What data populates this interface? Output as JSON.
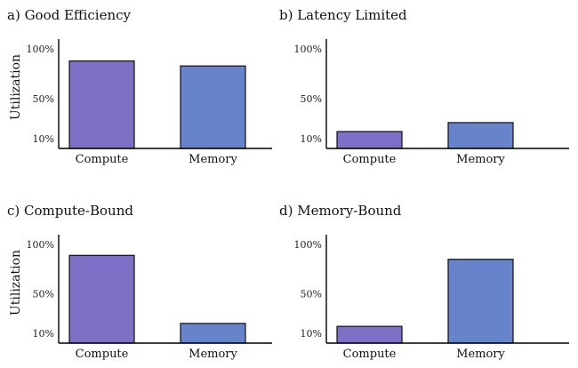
{
  "chart_data": [
    {
      "type": "bar",
      "title": "a) Good Efficiency",
      "ylabel": "Utilization",
      "xlabel": "",
      "categories": [
        "Compute",
        "Memory"
      ],
      "values": [
        88,
        83
      ],
      "colors": [
        "#7b6fc6",
        "#6683cb"
      ],
      "yticks": [
        10,
        50,
        100
      ],
      "ytick_labels": [
        "10%",
        "50%",
        "100%"
      ],
      "ylim": [
        0,
        110
      ]
    },
    {
      "type": "bar",
      "title": "b) Latency Limited",
      "ylabel": "",
      "xlabel": "",
      "categories": [
        "Compute",
        "Memory"
      ],
      "values": [
        17,
        26
      ],
      "colors": [
        "#7b6fc6",
        "#6683cb"
      ],
      "yticks": [
        10,
        50,
        100
      ],
      "ytick_labels": [
        "10%",
        "50%",
        "100%"
      ],
      "ylim": [
        0,
        110
      ]
    },
    {
      "type": "bar",
      "title": "c) Compute-Bound",
      "ylabel": "Utilization",
      "xlabel": "",
      "categories": [
        "Compute",
        "Memory"
      ],
      "values": [
        89,
        20
      ],
      "colors": [
        "#7b6fc6",
        "#6683cb"
      ],
      "yticks": [
        10,
        50,
        100
      ],
      "ytick_labels": [
        "10%",
        "50%",
        "100%"
      ],
      "ylim": [
        0,
        110
      ]
    },
    {
      "type": "bar",
      "title": "d) Memory-Bound",
      "ylabel": "",
      "xlabel": "",
      "categories": [
        "Compute",
        "Memory"
      ],
      "values": [
        17,
        85
      ],
      "colors": [
        "#7b6fc6",
        "#6683cb"
      ],
      "yticks": [
        10,
        50,
        100
      ],
      "ytick_labels": [
        "10%",
        "50%",
        "100%"
      ],
      "ylim": [
        0,
        110
      ]
    }
  ]
}
